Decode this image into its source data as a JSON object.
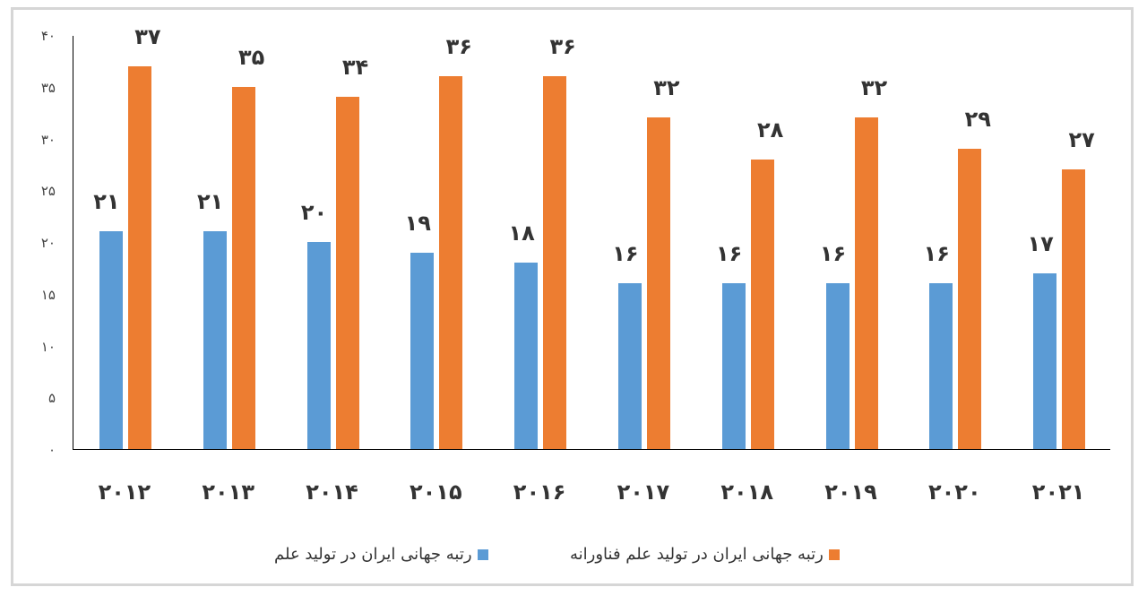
{
  "chart_data": {
    "type": "bar",
    "title": "",
    "xlabel": "",
    "ylabel": "",
    "ylim": [
      0,
      40
    ],
    "y_ticks": [
      "۰",
      "۵",
      "۱۰",
      "۱۵",
      "۲۰",
      "۲۵",
      "۳۰",
      "۳۵",
      "۴۰"
    ],
    "y_tick_values": [
      0,
      5,
      10,
      15,
      20,
      25,
      30,
      35,
      40
    ],
    "grid": false,
    "legend_position": "bottom",
    "categories": [
      "2012",
      "2013",
      "2014",
      "2015",
      "2016",
      "2017",
      "2018",
      "2019",
      "2020",
      "2021"
    ],
    "category_labels": [
      "۲۰۱۲",
      "۲۰۱۳",
      "۲۰۱۴",
      "۲۰۱۵",
      "۲۰۱۶",
      "۲۰۱۷",
      "۲۰۱۸",
      "۲۰۱۹",
      "۲۰۲۰",
      "۲۰۲۱"
    ],
    "series": [
      {
        "name": "رتبه جهانی ایران در تولید علم",
        "color": "#5b9bd5",
        "values": [
          21,
          21,
          20,
          19,
          18,
          16,
          16,
          16,
          16,
          17
        ],
        "value_labels": [
          "۲۱",
          "۲۱",
          "۲۰",
          "۱۹",
          "۱۸",
          "۱۶",
          "۱۶",
          "۱۶",
          "۱۶",
          "۱۷"
        ]
      },
      {
        "name": "رتبه جهانی ایران در تولید علم فناورانه",
        "color": "#ed7d31",
        "values": [
          37,
          35,
          34,
          36,
          36,
          32,
          28,
          32,
          29,
          27
        ],
        "value_labels": [
          "۳۷",
          "۳۵",
          "۳۴",
          "۳۶",
          "۳۶",
          "۳۲",
          "۲۸",
          "۳۲",
          "۲۹",
          "۲۷"
        ]
      }
    ]
  },
  "legend": {
    "items": [
      {
        "label": "رتبه جهانی ایران در تولید علم",
        "color": "#5b9bd5"
      },
      {
        "label": "رتبه جهانی ایران در تولید علم فناورانه",
        "color": "#ed7d31"
      }
    ]
  }
}
